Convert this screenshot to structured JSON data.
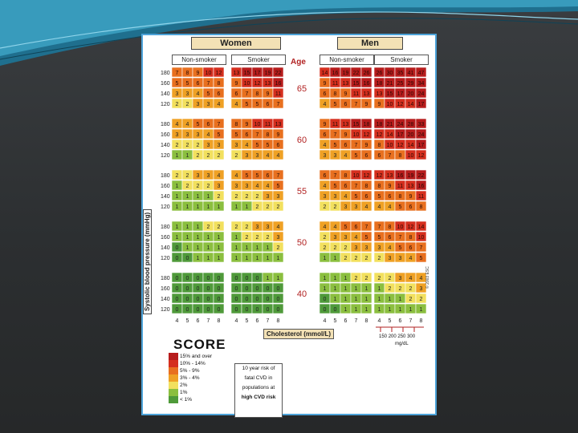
{
  "colors": {
    "bg": "#2e3133",
    "frame": "#4da3d9",
    "levels": {
      "15": "#b71c1c",
      "10": "#d52f1e",
      "5": "#e8701f",
      "3": "#efa125",
      "2": "#f2e05e",
      "1": "#8bbf3f",
      "0": "#4f9a3a"
    }
  },
  "chart_data": {
    "type": "heatmap",
    "title": "",
    "groups": [
      {
        "header": "Women",
        "columns": [
          {
            "label": "Non-smoker"
          },
          {
            "label": "Smoker"
          }
        ]
      },
      {
        "header": "Men",
        "columns": [
          {
            "label": "Non-smoker"
          },
          {
            "label": "Smoker"
          }
        ]
      }
    ],
    "age_header": "Age",
    "ylabel": "Systolic blood pressure (mmHg)",
    "xlabel": "Cholesterol (mmol/L)",
    "cholesterol_ticks": [
      "4",
      "5",
      "6",
      "7",
      "8"
    ],
    "mgdl_ticks": [
      "150",
      "200",
      "250",
      "300"
    ],
    "mgdl_label": "mg/dL",
    "sbp_levels": [
      "180",
      "160",
      "140",
      "120"
    ],
    "age_bands": [
      {
        "age": "65",
        "women_non": [
          [
            "7",
            "8",
            "9",
            "10",
            "12"
          ],
          [
            "5",
            "5",
            "6",
            "7",
            "8"
          ],
          [
            "3",
            "3",
            "4",
            "5",
            "6"
          ],
          [
            "2",
            "2",
            "3",
            "3",
            "4"
          ]
        ],
        "women_smk": [
          [
            "13",
            "15",
            "17",
            "19",
            "22"
          ],
          [
            "9",
            "10",
            "12",
            "13",
            "16"
          ],
          [
            "6",
            "7",
            "8",
            "9",
            "11"
          ],
          [
            "4",
            "5",
            "5",
            "6",
            "7"
          ]
        ],
        "men_non": [
          [
            "14",
            "16",
            "19",
            "22",
            "26"
          ],
          [
            "9",
            "11",
            "13",
            "15",
            "16"
          ],
          [
            "6",
            "8",
            "9",
            "11",
            "13"
          ],
          [
            "4",
            "5",
            "6",
            "7",
            "9"
          ]
        ],
        "men_smk": [
          [
            "26",
            "30",
            "35",
            "41",
            "47"
          ],
          [
            "18",
            "21",
            "25",
            "29",
            "34"
          ],
          [
            "13",
            "15",
            "17",
            "20",
            "24"
          ],
          [
            "9",
            "10",
            "12",
            "14",
            "17"
          ]
        ]
      },
      {
        "age": "60",
        "women_non": [
          [
            "4",
            "4",
            "5",
            "6",
            "7"
          ],
          [
            "3",
            "3",
            "3",
            "4",
            "5"
          ],
          [
            "2",
            "2",
            "2",
            "3",
            "3"
          ],
          [
            "1",
            "1",
            "2",
            "2",
            "2"
          ]
        ],
        "women_smk": [
          [
            "8",
            "9",
            "10",
            "11",
            "13"
          ],
          [
            "5",
            "6",
            "7",
            "8",
            "9"
          ],
          [
            "3",
            "4",
            "5",
            "5",
            "6"
          ],
          [
            "2",
            "3",
            "3",
            "4",
            "4"
          ]
        ],
        "men_non": [
          [
            "9",
            "11",
            "13",
            "15",
            "18"
          ],
          [
            "6",
            "7",
            "9",
            "10",
            "12"
          ],
          [
            "4",
            "5",
            "6",
            "7",
            "9"
          ],
          [
            "3",
            "3",
            "4",
            "5",
            "6"
          ]
        ],
        "men_smk": [
          [
            "18",
            "21",
            "24",
            "28",
            "33"
          ],
          [
            "12",
            "14",
            "17",
            "20",
            "24"
          ],
          [
            "8",
            "10",
            "12",
            "14",
            "17"
          ],
          [
            "6",
            "7",
            "8",
            "10",
            "12"
          ]
        ]
      },
      {
        "age": "55",
        "women_non": [
          [
            "2",
            "2",
            "3",
            "3",
            "4"
          ],
          [
            "1",
            "2",
            "2",
            "2",
            "3"
          ],
          [
            "1",
            "1",
            "1",
            "1",
            "2"
          ],
          [
            "1",
            "1",
            "1",
            "1",
            "1"
          ]
        ],
        "women_smk": [
          [
            "4",
            "5",
            "5",
            "6",
            "7"
          ],
          [
            "3",
            "3",
            "4",
            "4",
            "5"
          ],
          [
            "2",
            "2",
            "2",
            "3",
            "3"
          ],
          [
            "1",
            "1",
            "2",
            "2",
            "2"
          ]
        ],
        "men_non": [
          [
            "6",
            "7",
            "8",
            "10",
            "12"
          ],
          [
            "4",
            "5",
            "6",
            "7",
            "8"
          ],
          [
            "3",
            "3",
            "4",
            "5",
            "6"
          ],
          [
            "2",
            "2",
            "3",
            "3",
            "4"
          ]
        ],
        "men_smk": [
          [
            "12",
            "13",
            "16",
            "19",
            "22"
          ],
          [
            "8",
            "9",
            "11",
            "13",
            "16"
          ],
          [
            "5",
            "6",
            "8",
            "9",
            "11"
          ],
          [
            "4",
            "4",
            "5",
            "6",
            "8"
          ]
        ]
      },
      {
        "age": "50",
        "women_non": [
          [
            "1",
            "1",
            "1",
            "2",
            "2"
          ],
          [
            "1",
            "1",
            "1",
            "1",
            "1"
          ],
          [
            "0",
            "1",
            "1",
            "1",
            "1"
          ],
          [
            "0",
            "0",
            "1",
            "1",
            "1"
          ]
        ],
        "women_smk": [
          [
            "2",
            "2",
            "3",
            "3",
            "4"
          ],
          [
            "1",
            "2",
            "2",
            "2",
            "3"
          ],
          [
            "1",
            "1",
            "1",
            "1",
            "2"
          ],
          [
            "1",
            "1",
            "1",
            "1",
            "1"
          ]
        ],
        "men_non": [
          [
            "4",
            "4",
            "5",
            "6",
            "7"
          ],
          [
            "2",
            "3",
            "3",
            "4",
            "5"
          ],
          [
            "2",
            "2",
            "2",
            "3",
            "3"
          ],
          [
            "1",
            "1",
            "2",
            "2",
            "2"
          ]
        ],
        "men_smk": [
          [
            "7",
            "8",
            "10",
            "12",
            "14"
          ],
          [
            "5",
            "6",
            "7",
            "8",
            "10"
          ],
          [
            "3",
            "4",
            "5",
            "6",
            "7"
          ],
          [
            "2",
            "3",
            "3",
            "4",
            "5"
          ]
        ]
      },
      {
        "age": "40",
        "women_non": [
          [
            "0",
            "0",
            "0",
            "0",
            "0"
          ],
          [
            "0",
            "0",
            "0",
            "0",
            "0"
          ],
          [
            "0",
            "0",
            "0",
            "0",
            "0"
          ],
          [
            "0",
            "0",
            "0",
            "0",
            "0"
          ]
        ],
        "women_smk": [
          [
            "0",
            "0",
            "0",
            "1",
            "1"
          ],
          [
            "0",
            "0",
            "0",
            "0",
            "0"
          ],
          [
            "0",
            "0",
            "0",
            "0",
            "0"
          ],
          [
            "0",
            "0",
            "0",
            "0",
            "0"
          ]
        ],
        "men_non": [
          [
            "1",
            "1",
            "1",
            "2",
            "2"
          ],
          [
            "1",
            "1",
            "1",
            "1",
            "1"
          ],
          [
            "0",
            "1",
            "1",
            "1",
            "1"
          ],
          [
            "0",
            "0",
            "1",
            "1",
            "1"
          ]
        ],
        "men_smk": [
          [
            "2",
            "2",
            "3",
            "4",
            "4"
          ],
          [
            "1",
            "2",
            "2",
            "2",
            "3"
          ],
          [
            "1",
            "1",
            "1",
            "2",
            "2"
          ],
          [
            "1",
            "1",
            "1",
            "1",
            "1"
          ]
        ]
      }
    ],
    "legend": [
      {
        "label": "15% and over",
        "level": "15"
      },
      {
        "label": "10% - 14%",
        "level": "10"
      },
      {
        "label": "5% - 9%",
        "level": "5"
      },
      {
        "label": "3% - 4%",
        "level": "3"
      },
      {
        "label": "2%",
        "level": "2"
      },
      {
        "label": "1%",
        "level": "1"
      },
      {
        "label": "< 1%",
        "level": "0"
      }
    ],
    "logo": "SCORE",
    "note_lines": [
      "10 year risk of",
      "fatal CVD in",
      "populations at",
      "high CVD risk"
    ],
    "copyright": "© 2003 ESC"
  }
}
